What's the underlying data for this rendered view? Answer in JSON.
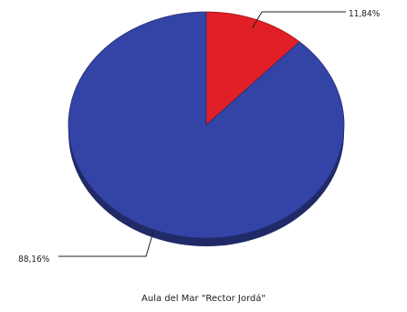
{
  "chart_data": {
    "type": "pie",
    "title": "Aula del Mar \"Rector Jordá\"",
    "slices": [
      {
        "label": "11,84%",
        "value": 11.84,
        "color": "#e11f26"
      },
      {
        "label": "88,16%",
        "value": 88.16,
        "color": "#3443a6"
      }
    ],
    "three_d": true,
    "start_angle": "12-o'clock",
    "direction": "clockwise"
  }
}
